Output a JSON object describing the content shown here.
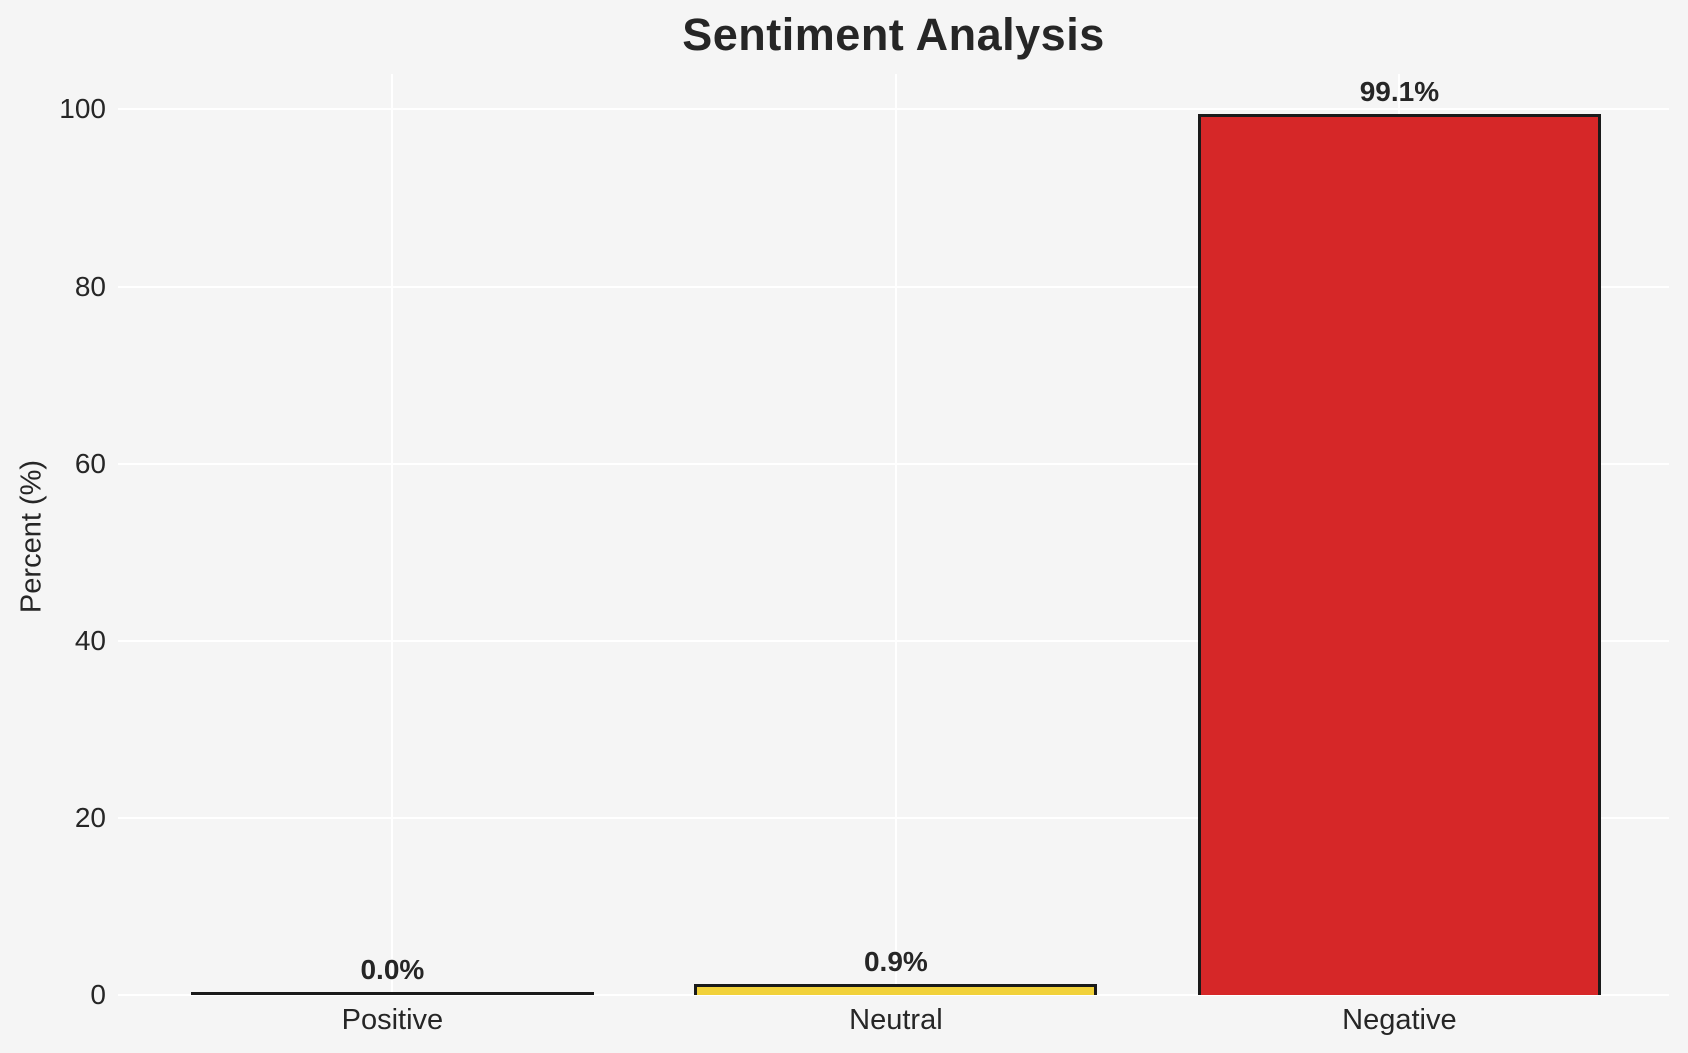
{
  "chart_data": {
    "type": "bar",
    "title": "Sentiment Analysis",
    "xlabel": "",
    "ylabel": "Percent (%)",
    "categories": [
      "Positive",
      "Neutral",
      "Negative"
    ],
    "values": [
      0.0,
      0.9,
      99.1
    ],
    "bar_labels": [
      "0.0%",
      "0.9%",
      "99.1%"
    ],
    "bar_colors": [
      null,
      "#f1d13a",
      "#d62728"
    ],
    "bar_edge_color": "#1a1a1a",
    "yticks": [
      0,
      20,
      40,
      60,
      80,
      100
    ],
    "ytick_labels": [
      "0",
      "20",
      "40",
      "60",
      "80",
      "100"
    ],
    "ylim": [
      0,
      104
    ],
    "grid": true,
    "grid_color": "#ffffff",
    "background_color": "#f5f5f5",
    "text_color": "#262626",
    "legend": null
  }
}
